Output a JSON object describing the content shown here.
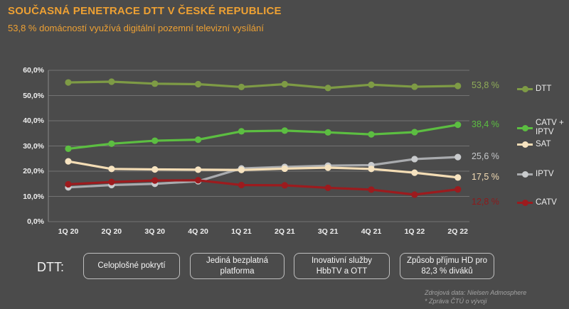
{
  "header": {
    "title": "SOUČASNÁ PENETRACE DTT V ČESKÉ REPUBLICE",
    "subtitle": "53,8 % domácností využívá digitální pozemní televizní vysílání"
  },
  "chart_data": {
    "type": "line",
    "title": "",
    "xlabel": "",
    "ylabel": "",
    "ylim": [
      0,
      60
    ],
    "ytick_step": 10,
    "ytick_labels": [
      "0,0%",
      "10,0%",
      "20,0%",
      "30,0%",
      "40,0%",
      "50,0%",
      "60,0%"
    ],
    "grid": true,
    "legend_position": "right",
    "categories": [
      "1Q 20",
      "2Q 20",
      "3Q 20",
      "4Q 20",
      "1Q 21",
      "2Q 21",
      "3Q 21",
      "4Q 21",
      "1Q 22",
      "2Q 22"
    ],
    "series": [
      {
        "name": "DTT",
        "values": [
          55.2,
          55.5,
          54.7,
          54.5,
          53.4,
          54.5,
          53.0,
          54.3,
          53.5,
          53.8
        ],
        "color": "#7E9B45",
        "dot_color": "#7E9B45",
        "end_label": "53,8 %",
        "end_label_color": "#8FAC58"
      },
      {
        "name": "CATV + IPTV",
        "values": [
          28.9,
          30.9,
          32.1,
          32.5,
          35.8,
          36.1,
          35.4,
          34.6,
          35.5,
          38.4
        ],
        "color": "#5CBE41",
        "dot_color": "#5CBE41",
        "end_label": "38,4 %",
        "end_label_color": "#5CBE41"
      },
      {
        "name": "SAT",
        "values": [
          23.9,
          20.9,
          20.7,
          20.6,
          20.5,
          21.0,
          21.4,
          20.9,
          19.4,
          17.5
        ],
        "color": "#F4DDB5",
        "dot_color": "#F6E3C0",
        "end_label": "17,5 %",
        "end_label_color": "#F4DDB5"
      },
      {
        "name": "IPTV",
        "values": [
          13.6,
          14.5,
          15.0,
          16.0,
          21.1,
          21.7,
          22.2,
          22.4,
          24.8,
          25.6
        ],
        "color": "#A9ABAE",
        "dot_color": "#C9CBCD",
        "end_label": "25,6 %",
        "end_label_color": "#C6C8CA"
      },
      {
        "name": "CATV",
        "values": [
          14.8,
          15.7,
          16.3,
          16.4,
          14.5,
          14.4,
          13.4,
          12.7,
          10.7,
          12.8
        ],
        "color": "#9C1B1E",
        "dot_color": "#9C1B1E",
        "end_label": "12,8 %",
        "end_label_color": "#8E191B"
      }
    ]
  },
  "footer": {
    "dtt_label": "DTT:",
    "boxes": [
      "Celoplošné pokrytí",
      "Jediná bezplatná platforma",
      "Inovativní služby HbbTV a OTT",
      "Způsob příjmu HD pro 82,3 % diváků"
    ],
    "source_lines": [
      "Zdrojová data: Nielsen Admosphere",
      "* Zpráva ČTÚ o vývoji"
    ]
  }
}
